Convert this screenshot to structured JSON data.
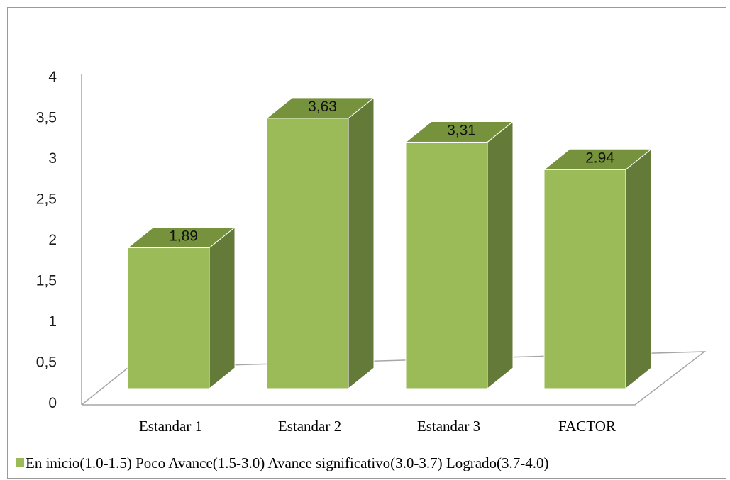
{
  "chart_data": {
    "type": "bar",
    "categories": [
      "Estandar 1",
      "Estandar 2",
      "Estandar 3",
      "FACTOR"
    ],
    "values": [
      1.89,
      3.63,
      3.31,
      2.94
    ],
    "data_labels": [
      "1,89",
      "3,63",
      "3,31",
      "2.94"
    ],
    "y_ticks": [
      "0",
      "0,5",
      "1",
      "1,5",
      "2",
      "2,5",
      "3",
      "3,5",
      "4"
    ],
    "ylim": [
      0,
      4
    ],
    "legend": {
      "text": "En inicio(1.0-1.5) Poco Avance(1.5-3.0) Avance significativo(3.0-3.7) Logrado(3.7-4.0)",
      "position": "bottom-left"
    },
    "colors": {
      "front": "#9bbb59",
      "side": "#647a39",
      "top": "#76923c",
      "floor_line": "#a6a6a6",
      "axis_line": "#a6a6a6"
    },
    "style": "3d-column",
    "grid": false
  }
}
